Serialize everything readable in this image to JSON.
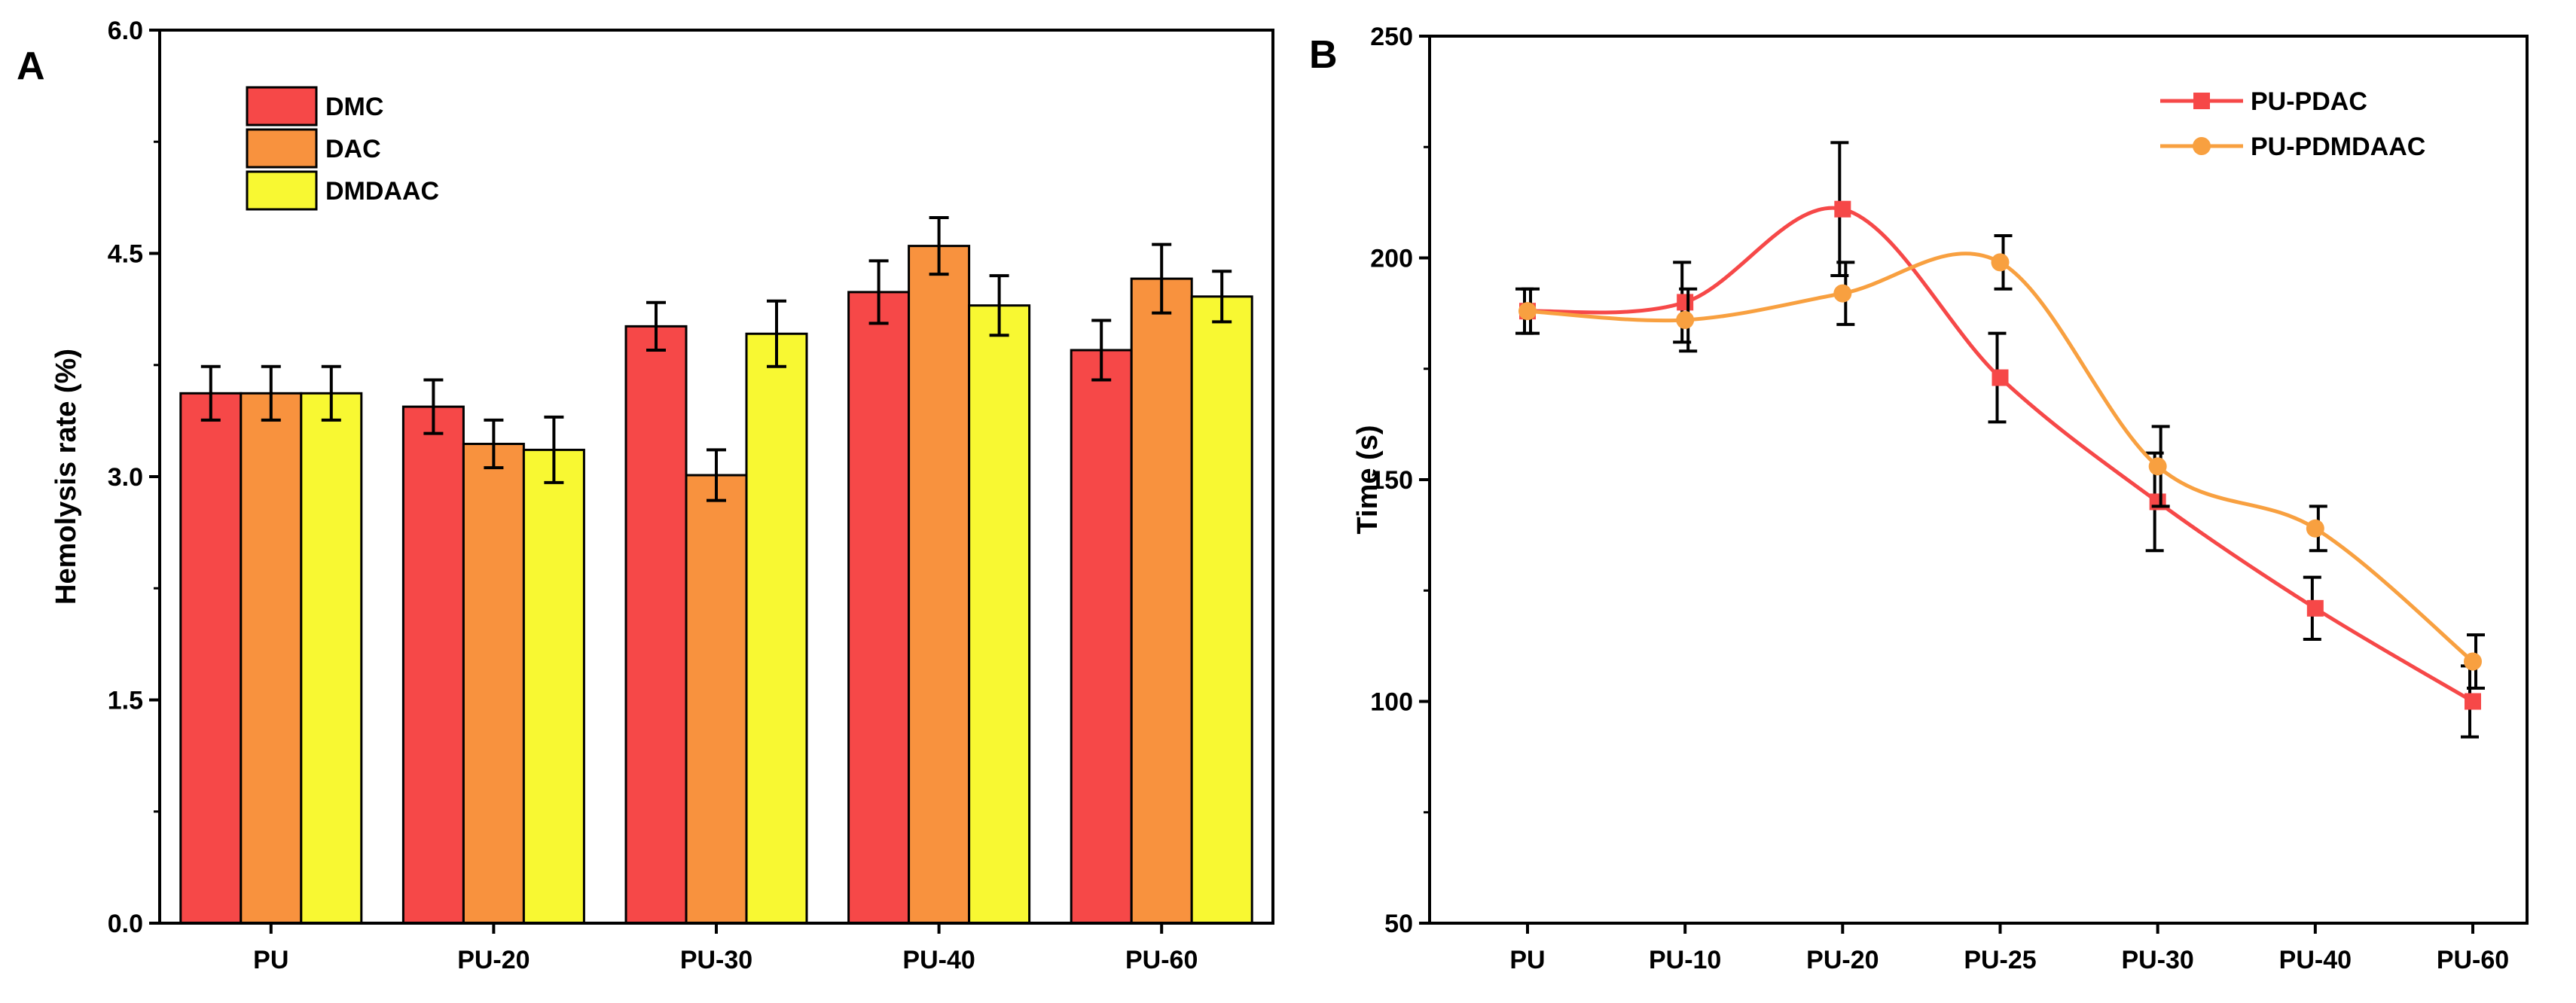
{
  "chart_data": [
    {
      "panel": "A",
      "type": "bar",
      "title": "",
      "xlabel": "",
      "ylabel": "Hemolysis rate (%)",
      "ylim": [
        0,
        6
      ],
      "yticks": [
        "0.0",
        "1.5",
        "3.0",
        "4.5",
        "6.0"
      ],
      "categories": [
        "PU",
        "PU-20",
        "PU-30",
        "PU-40",
        "PU-60"
      ],
      "series": [
        {
          "name": "DMC",
          "color": "#f64848",
          "values": [
            3.56,
            3.47,
            4.01,
            4.24,
            3.85
          ],
          "errors": [
            0.18,
            0.18,
            0.16,
            0.21,
            0.2
          ]
        },
        {
          "name": "DAC",
          "color": "#f8923e",
          "values": [
            3.56,
            3.22,
            3.01,
            4.55,
            4.33
          ],
          "errors": [
            0.18,
            0.16,
            0.17,
            0.19,
            0.23
          ]
        },
        {
          "name": "DMDAAC",
          "color": "#f8f832",
          "values": [
            3.56,
            3.18,
            3.96,
            4.15,
            4.21
          ],
          "errors": [
            0.18,
            0.22,
            0.22,
            0.2,
            0.17
          ]
        }
      ],
      "legend": "top-left"
    },
    {
      "panel": "B",
      "type": "line",
      "title": "",
      "xlabel": "",
      "ylabel": "Time (s)",
      "ylim": [
        50,
        250
      ],
      "yticks": [
        "50",
        "100",
        "150",
        "200",
        "250"
      ],
      "categories": [
        "PU",
        "PU-10",
        "PU-20",
        "PU-25",
        "PU-30",
        "PU-40",
        "PU-60"
      ],
      "series": [
        {
          "name": "PU-PDAC",
          "color": "#f64848",
          "marker": "square",
          "values": [
            188,
            190,
            211,
            173,
            145,
            121,
            100
          ],
          "errors": [
            5,
            9,
            15,
            10,
            11,
            7,
            8
          ]
        },
        {
          "name": "PU-PDMDAAC",
          "color": "#f8a040",
          "marker": "circle",
          "values": [
            188,
            186,
            192,
            199,
            153,
            139,
            109
          ],
          "errors": [
            5,
            7,
            7,
            6,
            9,
            5,
            6
          ]
        }
      ],
      "legend": "top-right"
    }
  ]
}
